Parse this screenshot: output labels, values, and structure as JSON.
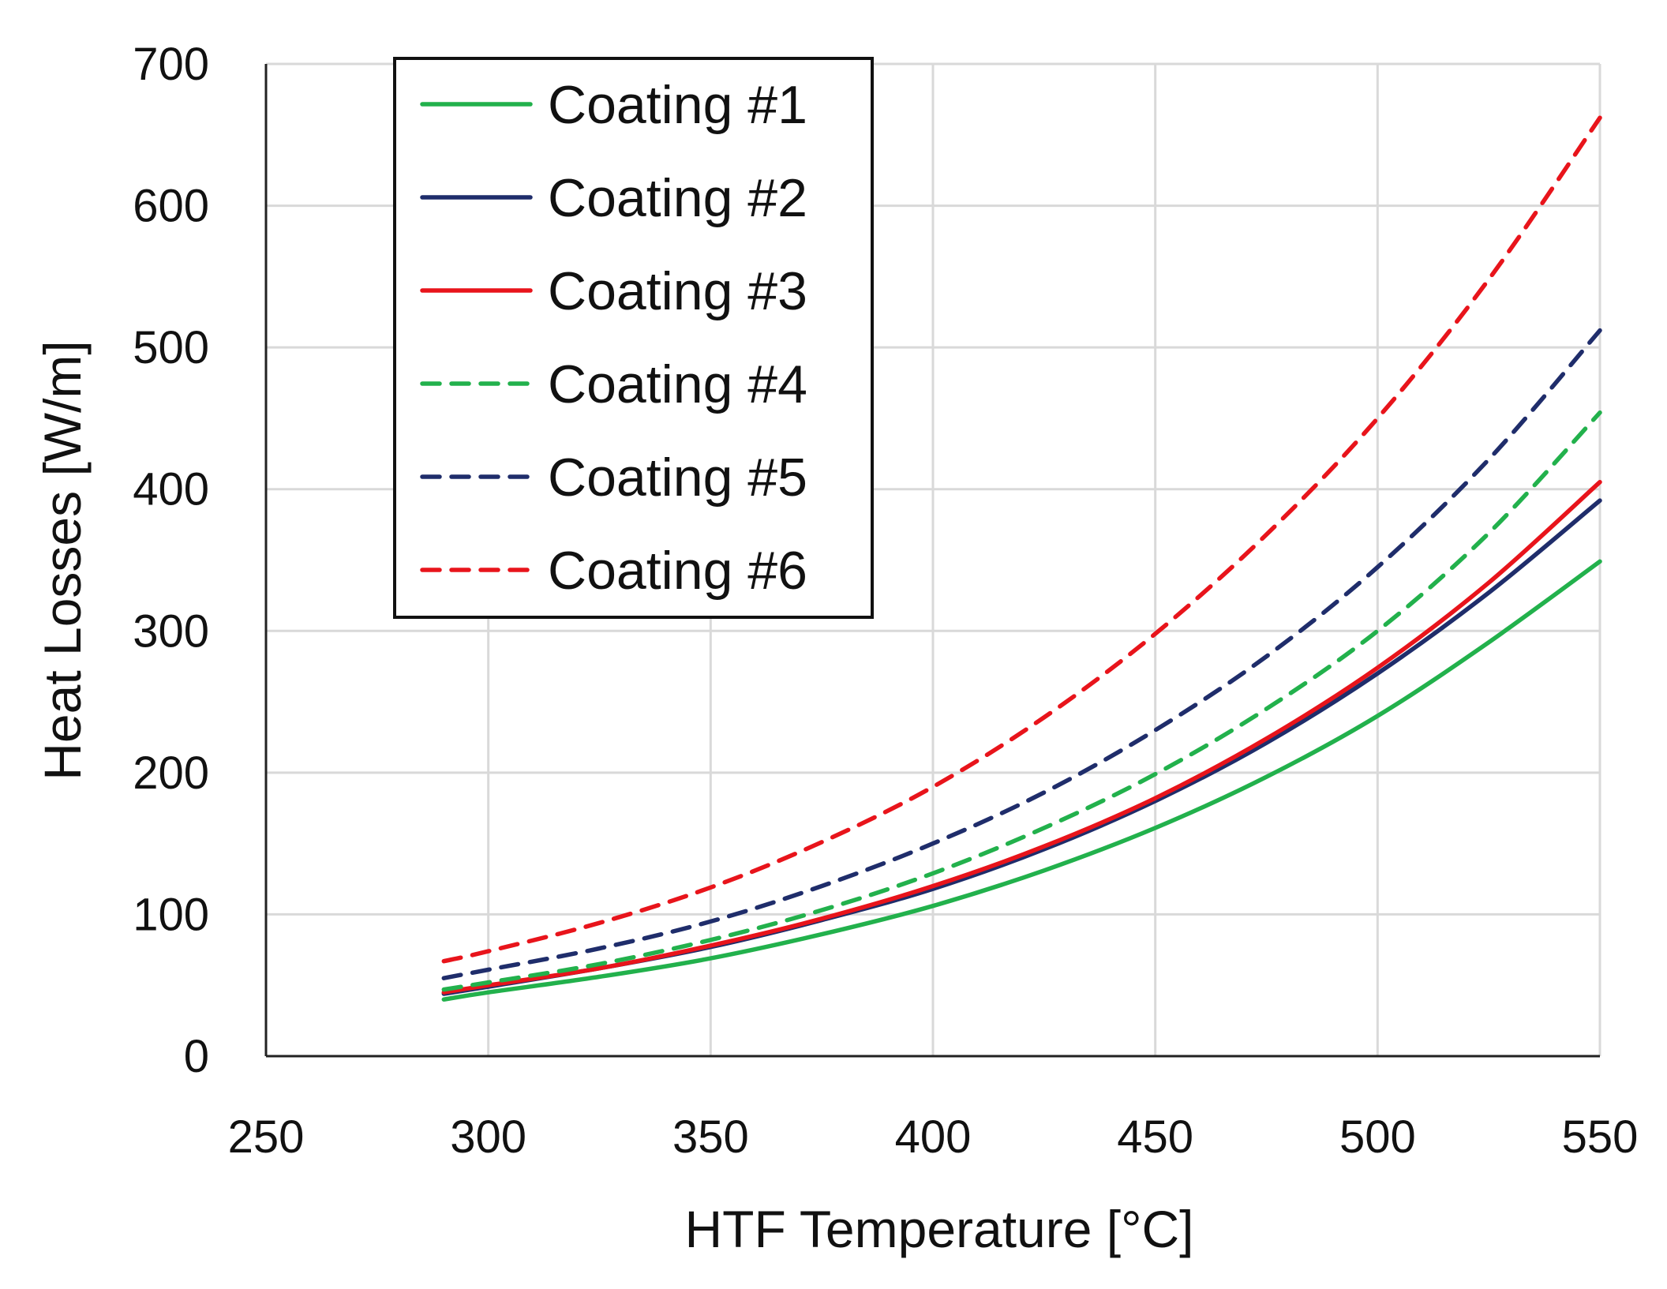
{
  "chart_data": {
    "type": "line",
    "title": "",
    "xlabel": "HTF Temperature [°C]",
    "ylabel": "Heat Losses [W/m]",
    "xlim": [
      250,
      550
    ],
    "ylim": [
      0,
      700
    ],
    "xticks": [
      250,
      300,
      350,
      400,
      450,
      500,
      550
    ],
    "yticks": [
      0,
      100,
      200,
      300,
      400,
      500,
      600,
      700
    ],
    "grid": true,
    "legend_position": "top-left",
    "x": [
      290,
      300,
      325,
      350,
      375,
      400,
      425,
      450,
      475,
      500,
      525,
      550
    ],
    "series": [
      {
        "name": "Coating #1",
        "color": "#22b14c",
        "dash": "solid",
        "values": [
          40,
          45,
          56,
          69,
          86,
          106,
          131,
          161,
          197,
          240,
          292,
          349
        ]
      },
      {
        "name": "Coating #2",
        "color": "#1f2d6b",
        "dash": "solid",
        "values": [
          44,
          49,
          62,
          77,
          96,
          118,
          146,
          180,
          221,
          270,
          327,
          392
        ]
      },
      {
        "name": "Coating #3",
        "color": "#e8141b",
        "dash": "solid",
        "values": [
          45,
          50,
          62,
          78,
          97,
          120,
          148,
          182,
          224,
          274,
          334,
          405
        ]
      },
      {
        "name": "Coating #4",
        "color": "#22b14c",
        "dash": "dashed",
        "values": [
          47,
          52,
          65,
          82,
          103,
          129,
          161,
          199,
          245,
          300,
          369,
          454
        ]
      },
      {
        "name": "Coating #5",
        "color": "#1f2d6b",
        "dash": "dashed",
        "values": [
          55,
          61,
          76,
          95,
          120,
          150,
          186,
          230,
          282,
          345,
          421,
          512
        ]
      },
      {
        "name": "Coating #6",
        "color": "#e8141b",
        "dash": "dashed",
        "values": [
          67,
          74,
          94,
          119,
          151,
          190,
          239,
          298,
          368,
          450,
          548,
          662
        ]
      }
    ]
  }
}
